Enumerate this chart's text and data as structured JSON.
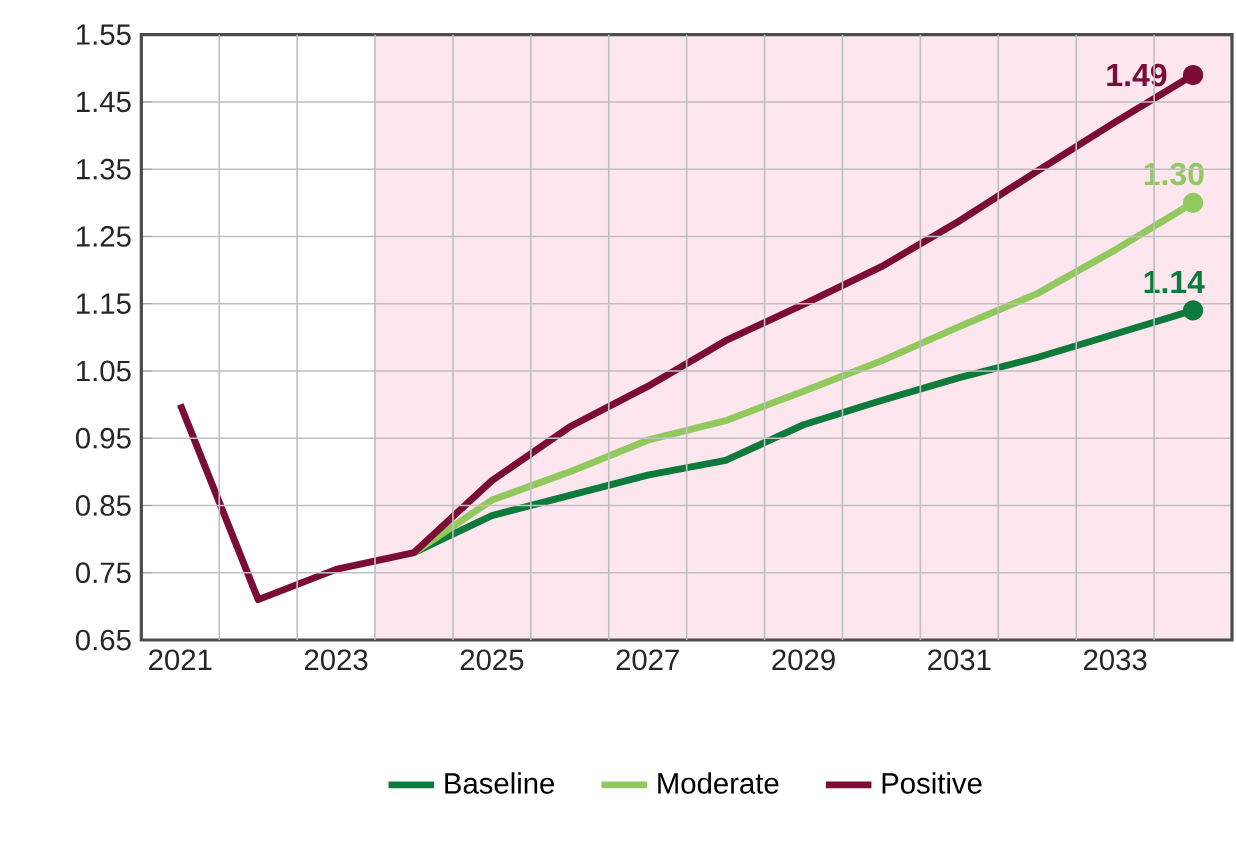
{
  "chart_data": {
    "type": "line",
    "x": [
      2021,
      2022,
      2023,
      2024,
      2025,
      2026,
      2027,
      2028,
      2029,
      2030,
      2031,
      2032,
      2033,
      2034
    ],
    "series": [
      {
        "name": "Baseline",
        "color": "#0e7a3c",
        "values": [
          null,
          null,
          null,
          0.78,
          0.835,
          0.865,
          0.895,
          0.917,
          0.97,
          1.006,
          1.04,
          1.07,
          1.105,
          1.14
        ],
        "value_labels": [
          null,
          null,
          null,
          null,
          null,
          null,
          null,
          null,
          null,
          null,
          null,
          null,
          null,
          "1.14"
        ]
      },
      {
        "name": "Moderate",
        "color": "#92c95e",
        "values": [
          null,
          null,
          null,
          0.78,
          0.858,
          0.9,
          0.947,
          0.976,
          1.02,
          1.065,
          1.116,
          1.165,
          1.23,
          1.3
        ],
        "value_labels": [
          null,
          null,
          null,
          null,
          null,
          null,
          null,
          null,
          null,
          null,
          null,
          null,
          null,
          "1.30"
        ]
      },
      {
        "name": "Positive",
        "color": "#7b0c35",
        "values": [
          1.0,
          0.71,
          0.755,
          0.78,
          0.887,
          0.967,
          1.027,
          1.095,
          1.149,
          1.205,
          1.273,
          1.347,
          1.42,
          1.49
        ],
        "value_labels": [
          null,
          null,
          null,
          null,
          null,
          null,
          null,
          null,
          null,
          null,
          null,
          null,
          null,
          "1.49"
        ]
      }
    ],
    "xlim": [
      2020.5,
      2034.5
    ],
    "xticks": [
      2021,
      2023,
      2025,
      2027,
      2029,
      2031,
      2033,
      {
        "value": 2021.5,
        "label": null
      },
      {
        "value": 2022.5,
        "label": null
      },
      {
        "value": 2023.5,
        "label": null
      },
      {
        "value": 2024.5,
        "label": null
      },
      {
        "value": 2025.5,
        "label": null
      },
      {
        "value": 2026.5,
        "label": null
      },
      {
        "value": 2027.5,
        "label": null
      },
      {
        "value": 2028.5,
        "label": null
      },
      {
        "value": 2029.5,
        "label": null
      },
      {
        "value": 2030.5,
        "label": null
      },
      {
        "value": 2031.5,
        "label": null
      },
      {
        "value": 2032.5,
        "label": null
      },
      {
        "value": 2033.5,
        "label": null
      }
    ],
    "ylim": [
      0.65,
      1.55
    ],
    "yticks": [
      0.65,
      0.75,
      0.85,
      0.95,
      1.05,
      1.15,
      1.25,
      1.35,
      1.45,
      1.55
    ],
    "bands": [
      {
        "axis": "x",
        "from": 2023.5,
        "to": 2034.5,
        "color": "#fde6ee"
      }
    ],
    "grid": true,
    "legend": "bottom"
  }
}
